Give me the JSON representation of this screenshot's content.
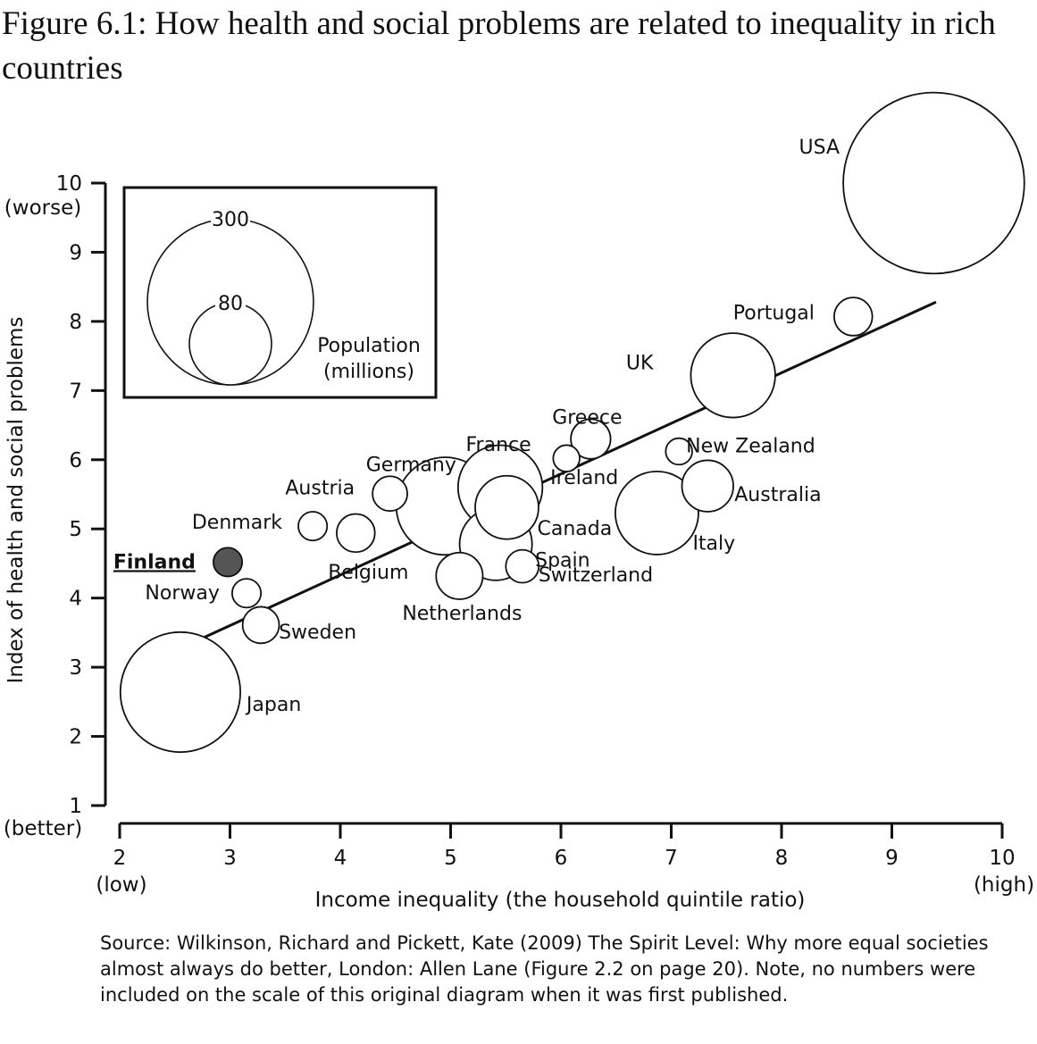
{
  "title": "Figure 6.1: How health and social problems are related to inequality in rich countries",
  "source": "Source: Wilkinson, Richard and Pickett, Kate (2009) The Spirit Level: Why more equal societies almost always do better, London: Allen Lane (Figure 2.2 on page 20). Note, no numbers were included on the scale of this original diagram when it was first published.",
  "chart_data": {
    "type": "scatter",
    "xlabel": "Income inequality (the household quintile ratio)",
    "ylabel": "Index of health and social problems",
    "xlim": [
      2,
      10
    ],
    "ylim": [
      1,
      10
    ],
    "x_ticks": [
      2,
      3,
      4,
      5,
      6,
      7,
      8,
      9,
      10
    ],
    "y_ticks": [
      1,
      2,
      3,
      4,
      5,
      6,
      7,
      8,
      9,
      10
    ],
    "x_low_label": "(low)",
    "x_high_label": "(high)",
    "y_low_label": "(better)",
    "y_high_label": "(worse)",
    "grid": false,
    "trend_line": {
      "x": [
        2.75,
        9.4
      ],
      "y": [
        3.42,
        8.28
      ]
    },
    "legend": {
      "title_line1": "Population",
      "title_line2": "(millions)",
      "sizes": [
        300,
        80
      ]
    },
    "highlight_color": "#555555",
    "points": [
      {
        "name": "USA",
        "x": 9.38,
        "y": 10.0,
        "population": 300
      },
      {
        "name": "Portugal",
        "x": 8.65,
        "y": 8.07,
        "population": 10
      },
      {
        "name": "UK",
        "x": 7.56,
        "y": 7.22,
        "population": 60
      },
      {
        "name": "Greece",
        "x": 6.27,
        "y": 6.3,
        "population": 11
      },
      {
        "name": "Ireland",
        "x": 6.05,
        "y": 6.02,
        "population": 4
      },
      {
        "name": "New Zealand",
        "x": 7.07,
        "y": 6.12,
        "population": 4
      },
      {
        "name": "Australia",
        "x": 7.33,
        "y": 5.62,
        "population": 20
      },
      {
        "name": "France",
        "x": 5.45,
        "y": 5.6,
        "population": 60
      },
      {
        "name": "Germany",
        "x": 4.95,
        "y": 5.33,
        "population": 82
      },
      {
        "name": "Canada",
        "x": 5.51,
        "y": 5.31,
        "population": 32
      },
      {
        "name": "Spain",
        "x": 5.41,
        "y": 4.78,
        "population": 43
      },
      {
        "name": "Italy",
        "x": 6.87,
        "y": 5.23,
        "population": 58
      },
      {
        "name": "Austria",
        "x": 4.45,
        "y": 5.51,
        "population": 8
      },
      {
        "name": "Denmark",
        "x": 3.75,
        "y": 5.04,
        "population": 5
      },
      {
        "name": "Belgium",
        "x": 4.14,
        "y": 4.94,
        "population": 10
      },
      {
        "name": "Finland",
        "x": 2.98,
        "y": 4.52,
        "population": 5,
        "highlight": true
      },
      {
        "name": "Norway",
        "x": 3.15,
        "y": 4.07,
        "population": 5
      },
      {
        "name": "Netherlands",
        "x": 5.08,
        "y": 4.32,
        "population": 16
      },
      {
        "name": "Switzerland",
        "x": 5.65,
        "y": 4.46,
        "population": 7
      },
      {
        "name": "Sweden",
        "x": 3.28,
        "y": 3.61,
        "population": 9
      },
      {
        "name": "Japan",
        "x": 2.55,
        "y": 2.64,
        "population": 127
      }
    ]
  }
}
